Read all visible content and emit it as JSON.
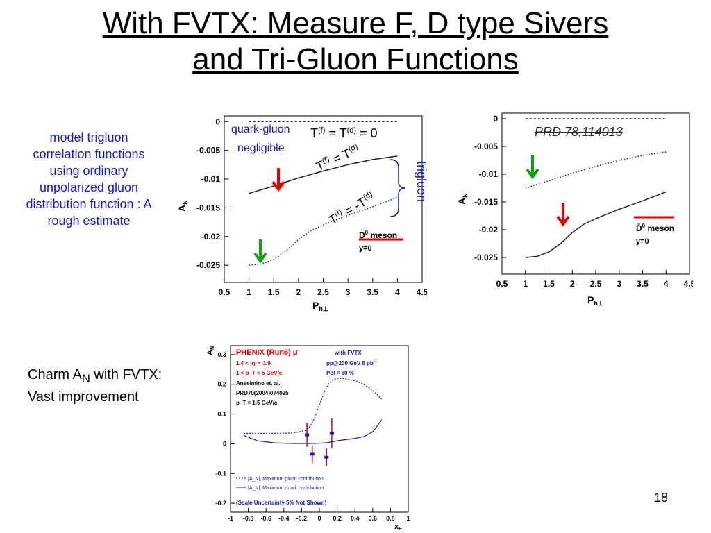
{
  "slide": {
    "title_line1": "With FVTX: Measure F, D type Sivers",
    "title_line2": "and Tri-Gluon Functions",
    "page_number": "18"
  },
  "left_note": {
    "lines": [
      "model trigluon",
      "correlation functions",
      "using ordinary",
      "unpolarized gluon",
      "distribution function : A",
      "rough estimate"
    ],
    "color": "#1515cc"
  },
  "charm_note": {
    "line1_pre": "Charm A",
    "line1_sub": "N",
    "line1_post": " with FVTX:",
    "line2": "Vast improvement"
  },
  "annotations": {
    "quark_gluon": "quark-gluon",
    "negligible": "negligible",
    "trigluon": "trigluon",
    "prd_ref": "PRD 78,114013",
    "eq_zero_T1": "T",
    "eq_zero_f": "(f)",
    "eq_zero_eq": " = T",
    "eq_zero_d": "(d)",
    "eq_zero_end": " = 0",
    "eq_pos_T1": "T",
    "eq_pos_f": "(f)",
    "eq_pos_eq": " = T",
    "eq_pos_d": "(d)",
    "eq_neg_T1": "T",
    "eq_neg_f": "(f)",
    "eq_neg_eq": " = -T",
    "eq_neg_d": "(d)"
  },
  "chart_data": [
    {
      "type": "line",
      "ylabel": "A_N",
      "xlabel": "P_h⊥",
      "xlim": [
        0.5,
        4.5
      ],
      "ylim": [
        -0.028,
        0.001
      ],
      "x_ticks": [
        0.5,
        1,
        1.5,
        2,
        2.5,
        3,
        3.5,
        4,
        4.5
      ],
      "y_ticks": [
        0,
        -0.005,
        -0.01,
        -0.015,
        -0.02,
        -0.025
      ],
      "x_tick_labels": [
        "0.5",
        "1",
        "1.5",
        "2",
        "2.5",
        "3",
        "3.5",
        "4",
        "4.5"
      ],
      "y_tick_labels": [
        "0",
        "-0.005",
        "-0.01",
        "-0.015",
        "-0.02",
        "-0.025"
      ],
      "legend_label": "D",
      "legend_sup": "0",
      "legend_rest": " meson",
      "legend_sub": "y=0",
      "series": [
        {
          "style": "dashed",
          "x": [
            1,
            1.5,
            2,
            2.5,
            3,
            3.5,
            4
          ],
          "y": [
            0,
            0,
            0,
            0,
            0,
            0,
            0
          ]
        },
        {
          "style": "solid",
          "x": [
            1,
            1.5,
            2,
            2.5,
            3,
            3.5,
            4
          ],
          "y": [
            -0.0125,
            -0.0112,
            -0.0098,
            -0.0086,
            -0.0075,
            -0.0066,
            -0.006
          ]
        },
        {
          "style": "dotted",
          "x": [
            1,
            1.25,
            1.5,
            1.75,
            2,
            2.25,
            2.5,
            3,
            3.5,
            4
          ],
          "y": [
            -0.025,
            -0.0248,
            -0.024,
            -0.0225,
            -0.0205,
            -0.019,
            -0.018,
            -0.0163,
            -0.0148,
            -0.0132
          ]
        }
      ]
    },
    {
      "type": "line",
      "ylabel": "A_N",
      "xlabel": "P_h⊥",
      "xlim": [
        0.5,
        4.5
      ],
      "ylim": [
        -0.028,
        0.001
      ],
      "x_ticks": [
        0.5,
        1,
        1.5,
        2,
        2.5,
        3,
        3.5,
        4,
        4.5
      ],
      "y_ticks": [
        0,
        -0.005,
        -0.01,
        -0.015,
        -0.02,
        -0.025
      ],
      "x_tick_labels": [
        "0.5",
        "1",
        "1.5",
        "2",
        "2.5",
        "3",
        "3.5",
        "4",
        "4.5"
      ],
      "y_tick_labels": [
        "0",
        "-0.005",
        "-0.01",
        "-0.015",
        "-0.02",
        "-0.025"
      ],
      "legend_label": "D̄",
      "legend_sup": "0",
      "legend_rest": " meson",
      "legend_sub": "y=0",
      "series": [
        {
          "style": "dashed",
          "x": [
            1,
            1.5,
            2,
            2.5,
            3,
            3.5,
            4
          ],
          "y": [
            0,
            0,
            0,
            0,
            0,
            0,
            0
          ]
        },
        {
          "style": "dotted",
          "x": [
            1,
            1.5,
            2,
            2.5,
            3,
            3.5,
            4
          ],
          "y": [
            -0.0125,
            -0.0112,
            -0.0098,
            -0.0086,
            -0.0075,
            -0.0066,
            -0.006
          ]
        },
        {
          "style": "solid",
          "x": [
            1,
            1.25,
            1.5,
            1.75,
            2,
            2.25,
            2.5,
            3,
            3.5,
            4
          ],
          "y": [
            -0.025,
            -0.0248,
            -0.024,
            -0.0225,
            -0.0205,
            -0.019,
            -0.018,
            -0.0163,
            -0.0148,
            -0.0132
          ]
        }
      ]
    },
    {
      "type": "line",
      "ylabel": "A_N",
      "xlabel": "x_F",
      "xlim": [
        -1,
        1
      ],
      "ylim": [
        -0.23,
        0.33
      ],
      "x_ticks": [
        -1,
        -0.8,
        -0.6,
        -0.4,
        -0.2,
        0,
        0.2,
        0.4,
        0.6,
        0.8,
        1
      ],
      "y_ticks": [
        -0.2,
        -0.1,
        0,
        0.1,
        0.2,
        0.3
      ],
      "x_tick_labels": [
        "-1",
        "-0.8",
        "-0.6",
        "-0.4",
        "-0.2",
        "0",
        "0.2",
        "0.4",
        "0.6",
        "0.8",
        "1"
      ],
      "y_tick_labels": [
        "-0.2",
        "-0.1",
        "0",
        "0.1",
        "0.2",
        "0.3"
      ],
      "legend_texts": {
        "phenix": "PHENIX (Run6)",
        "mu": "μ",
        "mu_sup": "-",
        "with_fvtx": "with FVTX",
        "eta": "1.4 < |η| < 1.9",
        "pt": "1 < p_T < 5 GeV/c",
        "pp": "pp@200 GeV  8 pb",
        "pp_sup": "-1",
        "pol": "Pol = 60 %",
        "ansel": "Anselmino et. al.",
        "prd": "PRD70(2004)074025",
        "pt15": "p_T = 1.5 GeV/c",
        "leg_gluon": "|A_N|, Maximum gluon contribution",
        "leg_quark": "|A_N|, Maximum quark contribution",
        "scale": "(Scale Uncertainty 5% Not Shown)"
      },
      "series": [
        {
          "name": "|A_N|, Maximum gluon contribution",
          "style": "dashed",
          "x": [
            -0.85,
            -0.6,
            -0.3,
            -0.15,
            -0.1,
            -0.05,
            0,
            0.05,
            0.1,
            0.15,
            0.2,
            0.25,
            0.3,
            0.4,
            0.5,
            0.6,
            0.7
          ],
          "y": [
            0.035,
            0.035,
            0.036,
            0.045,
            0.06,
            0.09,
            0.13,
            0.17,
            0.2,
            0.215,
            0.22,
            0.22,
            0.218,
            0.212,
            0.2,
            0.18,
            0.15
          ]
        },
        {
          "name": "|A_N|, Maximum quark contribution",
          "style": "solid",
          "x": [
            -0.85,
            -0.7,
            -0.5,
            -0.3,
            -0.1,
            0,
            0.1,
            0.2,
            0.3,
            0.4,
            0.5,
            0.6,
            0.7
          ],
          "y": [
            0.028,
            0.01,
            0.003,
            0.001,
            0.001,
            0.002,
            0.004,
            0.01,
            0.014,
            0.018,
            0.024,
            0.04,
            0.08
          ]
        },
        {
          "name": "points",
          "style": "points",
          "x": [
            -0.14,
            -0.08,
            0.08,
            0.14
          ],
          "y": [
            0.03,
            -0.035,
            -0.045,
            0.035
          ],
          "err": [
            0.04,
            0.03,
            0.03,
            0.05
          ]
        }
      ]
    }
  ]
}
